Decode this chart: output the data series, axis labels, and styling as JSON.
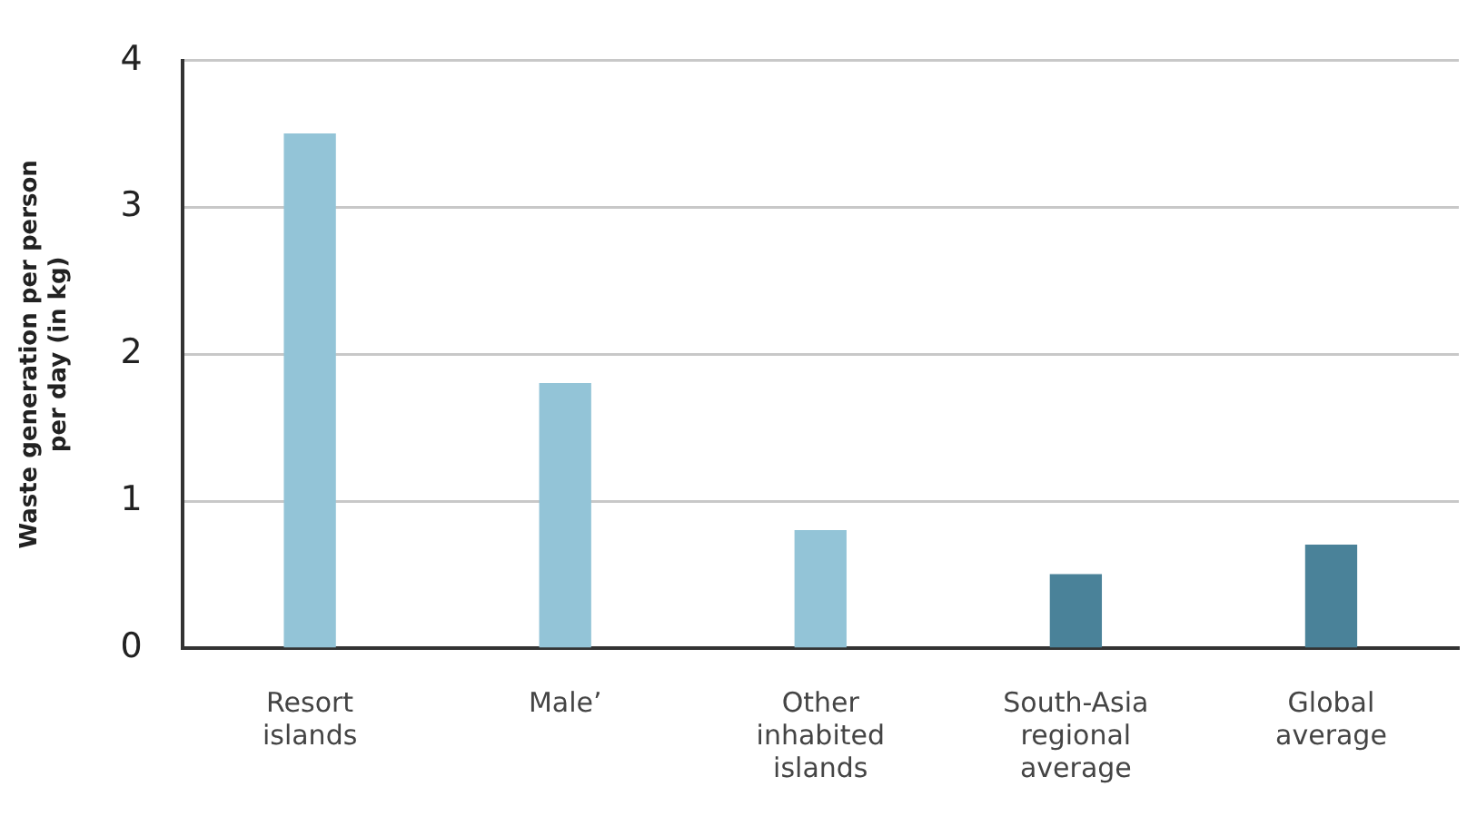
{
  "chart_data": {
    "type": "bar",
    "ylabel": "Waste generation per person per day (in kg)",
    "categories": [
      "Resort islands",
      "Male’",
      "Other inhabited islands",
      "South-Asia regional average",
      "Global average"
    ],
    "values": [
      3.5,
      1.8,
      0.8,
      0.5,
      0.7
    ],
    "colors": [
      "#93c4d7",
      "#93c4d7",
      "#93c4d7",
      "#4a8299",
      "#4a8299"
    ],
    "ylim": [
      0,
      4
    ],
    "yticks": [
      0,
      1,
      2,
      3,
      4
    ],
    "grid": "y",
    "legend": false
  }
}
